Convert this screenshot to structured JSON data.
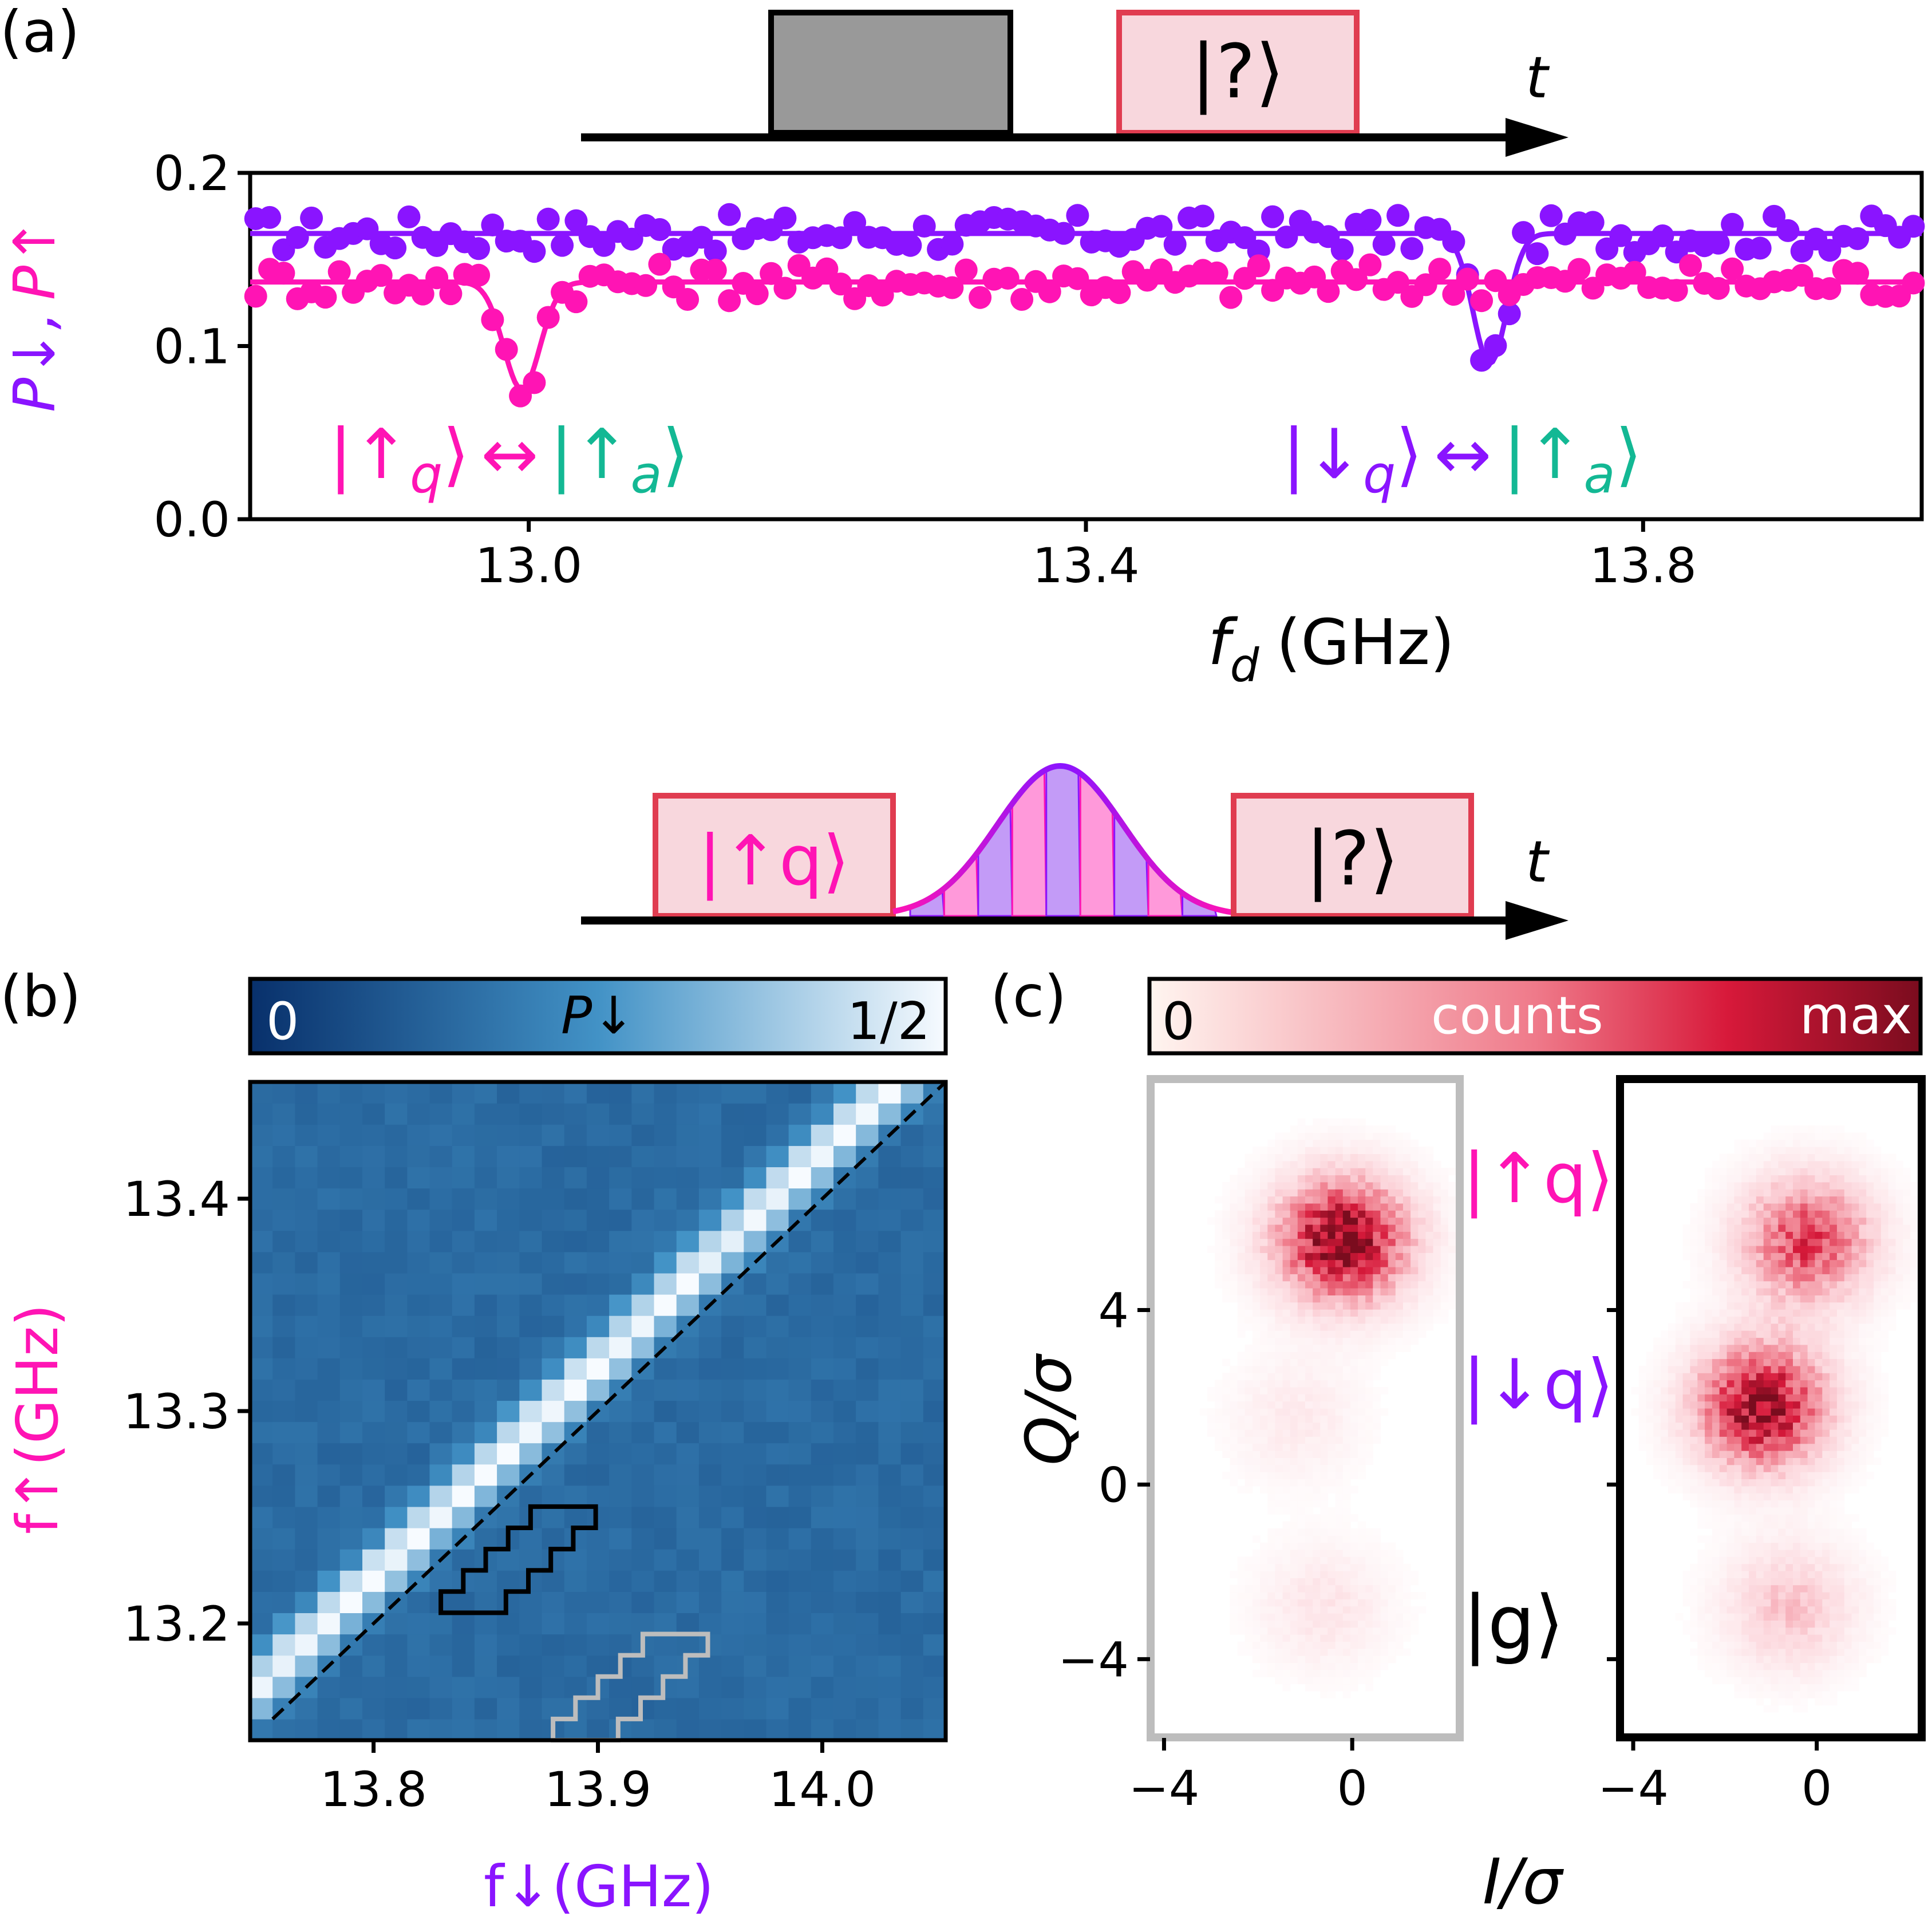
{
  "colors": {
    "magenta": "#ff14b4",
    "purple": "#8a14ff",
    "teal": "#13b894",
    "pulse_edge": "#e03c50",
    "pulse_fill": "#f8d7dd",
    "gray_pulse": "#999999"
  },
  "panel_a": {
    "label": "(a)",
    "pulse_symbol": "|?⟩",
    "time_label": "t",
    "ylabel_down": "P↓",
    "ylabel_sep": ",",
    "ylabel_up": "P↑",
    "xlabel_var": "f",
    "xlabel_sub": "d",
    "xlabel_unit": "(GHz)",
    "transition_left": {
      "bra": "|",
      "arrow": "↑",
      "sub": "q",
      "close": "⟩",
      "between": "↔",
      "target_arrow": "↑",
      "target_sub": "a"
    },
    "transition_right": {
      "bra": "|",
      "arrow": "↓",
      "sub": "q",
      "close": "⟩",
      "between": "↔",
      "target_arrow": "↑",
      "target_sub": "a"
    }
  },
  "panel_b": {
    "label": "(b)",
    "cbar_min": "0",
    "cbar_label": "P↓",
    "cbar_max": "1/2",
    "ylabel": "f↑(GHz)",
    "xlabel": "f↓(GHz)",
    "pulse_left": "|↑q⟩",
    "pulse_right": "|?⟩",
    "time_label": "t"
  },
  "panel_c": {
    "label": "(c)",
    "cbar_min": "0",
    "cbar_label": "counts",
    "cbar_max": "max",
    "ylabel": "Q/σ",
    "xlabel": "I/σ",
    "state_up": "|↑q⟩",
    "state_down": "|↓q⟩",
    "state_g": "|g⟩"
  },
  "chart_data": [
    {
      "type": "scatter",
      "panel": "a",
      "xlabel": "f_d (GHz)",
      "ylabel": "P↓, P↑",
      "xlim": [
        12.8,
        14.0
      ],
      "ylim": [
        0.0,
        0.2
      ],
      "xticks": [
        "13.0",
        "13.4",
        "13.8"
      ],
      "yticks": [
        "0.0",
        "0.1",
        "0.2"
      ],
      "series": [
        {
          "name": "P↓",
          "color": "#8a14ff",
          "baseline": 0.165,
          "dip_center": 13.69,
          "dip_min": 0.09,
          "dip_width": 0.012
        },
        {
          "name": "P↑",
          "color": "#ff14b4",
          "baseline": 0.137,
          "dip_center": 12.995,
          "dip_min": 0.075,
          "dip_width": 0.013
        }
      ]
    },
    {
      "type": "heatmap",
      "panel": "b",
      "xlabel": "f↓(GHz)",
      "ylabel": "f↑(GHz)",
      "xlim": [
        13.745,
        14.055
      ],
      "ylim": [
        13.145,
        13.455
      ],
      "xticks": [
        "13.8",
        "13.9",
        "14.0"
      ],
      "yticks": [
        "13.2",
        "13.3",
        "13.4"
      ],
      "colorbar": {
        "min": "0",
        "max": "1/2",
        "label": "P↓"
      },
      "diagonal_offset": -0.6,
      "background_value": 0.15,
      "peak_value": 0.5
    },
    {
      "type": "heatmap",
      "panel": "c",
      "xlabel": "I/σ",
      "ylabel": "Q/σ",
      "xlim": [
        -4.2,
        2.2
      ],
      "ylim": [
        -5.7,
        9.2
      ],
      "xticks": [
        "−4",
        "0"
      ],
      "yticks": [
        "−4",
        "0",
        "4"
      ],
      "colorbar": {
        "min": "0",
        "max": "max",
        "label": "counts"
      },
      "histograms": [
        {
          "frame": "gray",
          "blobs": [
            {
              "state": "↑q",
              "I": -0.2,
              "Q": 5.6,
              "weight": 1.0
            },
            {
              "state": "↓q",
              "I": -1.2,
              "Q": 1.5,
              "weight": 0.12
            },
            {
              "state": "g",
              "I": -0.6,
              "Q": -2.8,
              "weight": 0.15
            }
          ]
        },
        {
          "frame": "black",
          "blobs": [
            {
              "state": "↑q",
              "I": -0.2,
              "Q": 5.6,
              "weight": 0.7
            },
            {
              "state": "↓q",
              "I": -1.2,
              "Q": 1.8,
              "weight": 0.95
            },
            {
              "state": "g",
              "I": -0.6,
              "Q": -2.8,
              "weight": 0.3
            }
          ]
        }
      ]
    }
  ]
}
